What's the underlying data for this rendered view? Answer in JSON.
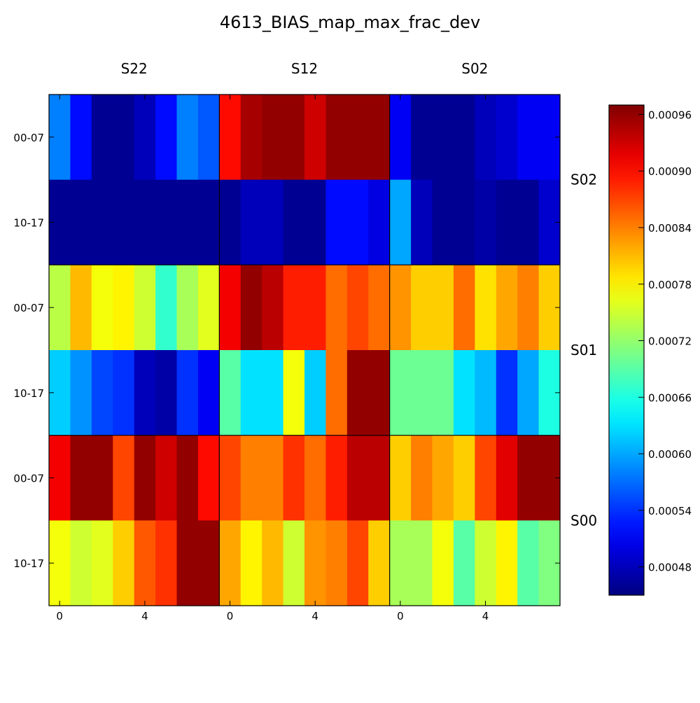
{
  "title": "4613_BIAS_map_max_frac_dev",
  "chart_data": {
    "type": "heatmap",
    "title": "4613_BIAS_map_max_frac_dev",
    "colormap": "jet",
    "vmin": 0.00045,
    "vmax": 0.00097,
    "column_groups": [
      "S22",
      "S12",
      "S02"
    ],
    "row_groups": [
      "S02",
      "S01",
      "S00"
    ],
    "row_tick_labels": [
      "00-07",
      "10-17",
      "00-07",
      "10-17",
      "00-07",
      "10-17"
    ],
    "x_tick_labels": [
      "0",
      "4"
    ],
    "colorbar_ticks": [
      "0.00048",
      "0.00054",
      "0.00060",
      "0.00066",
      "0.00072",
      "0.00078",
      "0.00084",
      "0.00090",
      "0.00096"
    ],
    "colorbar_tick_values": [
      0.00048,
      0.00054,
      0.0006,
      0.00066,
      0.00072,
      0.00078,
      0.00084,
      0.0009,
      0.00096
    ],
    "values": [
      [
        0.00058,
        0.00052,
        0.00046,
        0.00046,
        0.00048,
        0.00052,
        0.00058,
        0.00056,
        0.0009,
        0.00095,
        0.00096,
        0.00096,
        0.00093,
        0.00096,
        0.00096,
        0.00096,
        0.00051,
        0.00046,
        0.00046,
        0.00046,
        0.00048,
        0.00049,
        0.00051,
        0.00051
      ],
      [
        0.00046,
        0.00046,
        0.00046,
        0.00046,
        0.00046,
        0.00046,
        0.00046,
        0.00046,
        0.00046,
        0.00048,
        0.00048,
        0.00046,
        0.00046,
        0.00052,
        0.00052,
        0.0005,
        0.0006,
        0.00048,
        0.00046,
        0.00046,
        0.00047,
        0.00046,
        0.00046,
        0.00049
      ],
      [
        0.00074,
        0.00081,
        0.00077,
        0.00078,
        0.00075,
        0.00067,
        0.00073,
        0.00076,
        0.00091,
        0.00096,
        0.00094,
        0.00089,
        0.00089,
        0.00085,
        0.00087,
        0.00085,
        0.00083,
        0.0008,
        0.0008,
        0.00085,
        0.00079,
        0.00082,
        0.00084,
        0.0008
      ],
      [
        0.00062,
        0.00059,
        0.00055,
        0.00054,
        0.00048,
        0.00047,
        0.00054,
        0.00051,
        0.00069,
        0.00063,
        0.00063,
        0.00077,
        0.00062,
        0.00085,
        0.00096,
        0.00096,
        0.0007,
        0.0007,
        0.0007,
        0.00063,
        0.00061,
        0.00054,
        0.0006,
        0.00066
      ],
      [
        0.00091,
        0.00096,
        0.00096,
        0.00087,
        0.00096,
        0.00093,
        0.00096,
        0.0009,
        0.00087,
        0.00084,
        0.00084,
        0.00088,
        0.00085,
        0.00089,
        0.00094,
        0.00094,
        0.0008,
        0.00084,
        0.00082,
        0.0008,
        0.00087,
        0.00092,
        0.00096,
        0.00096
      ],
      [
        0.00077,
        0.00075,
        0.00076,
        0.0008,
        0.00086,
        0.00088,
        0.00096,
        0.00096,
        0.00082,
        0.00078,
        0.00081,
        0.00075,
        0.00083,
        0.00084,
        0.00087,
        0.0008,
        0.00073,
        0.00073,
        0.00077,
        0.00069,
        0.00075,
        0.00078,
        0.00069,
        0.00071
      ]
    ]
  }
}
